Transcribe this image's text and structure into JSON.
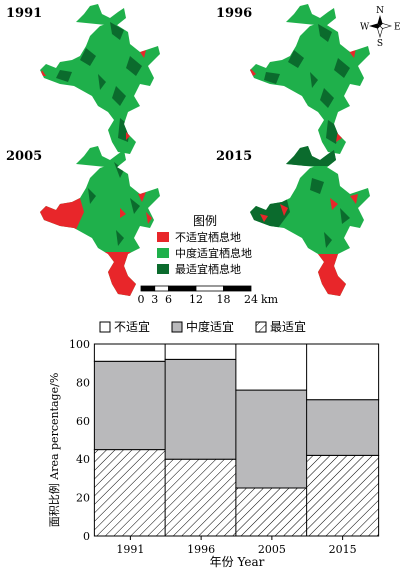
{
  "maps": {
    "panels": [
      {
        "year": "1991"
      },
      {
        "year": "1996"
      },
      {
        "year": "2005"
      },
      {
        "year": "2015"
      }
    ],
    "compass": {
      "n": "N",
      "s": "S",
      "e": "E",
      "w": "W"
    },
    "legend": {
      "title": "图例",
      "items": [
        {
          "label": "不适宜栖息地",
          "color": "#e8262a"
        },
        {
          "label": "中度适宜栖息地",
          "color": "#1fb04b"
        },
        {
          "label": "最适宜栖息地",
          "color": "#0b6b2d"
        }
      ]
    },
    "scalebar": {
      "ticks": [
        "0",
        "3",
        "6",
        "12",
        "18",
        "24"
      ],
      "tick_values": [
        0,
        3,
        6,
        12,
        18,
        24
      ],
      "unit": "km"
    }
  },
  "chart_data": {
    "type": "bar",
    "stacked": true,
    "categories": [
      "1991",
      "1996",
      "2005",
      "2015"
    ],
    "series": [
      {
        "name": "最适宜",
        "values": [
          45,
          40,
          25,
          42
        ],
        "pattern": "hatch"
      },
      {
        "name": "中度适宜",
        "values": [
          46,
          52,
          51,
          29
        ],
        "color": "#b9b9bb"
      },
      {
        "name": "不适宜",
        "values": [
          9,
          8,
          24,
          29
        ],
        "color": "#ffffff"
      }
    ],
    "legend_order": [
      "不适宜",
      "中度适宜",
      "最适宜"
    ],
    "legend_position": "top",
    "xlabel": "年份 Year",
    "ylabel": "面积比例 Area percentage/%",
    "ylim": [
      0,
      100
    ],
    "yticks": [
      "0",
      "20",
      "40",
      "60",
      "80",
      "100"
    ],
    "grid": false
  }
}
